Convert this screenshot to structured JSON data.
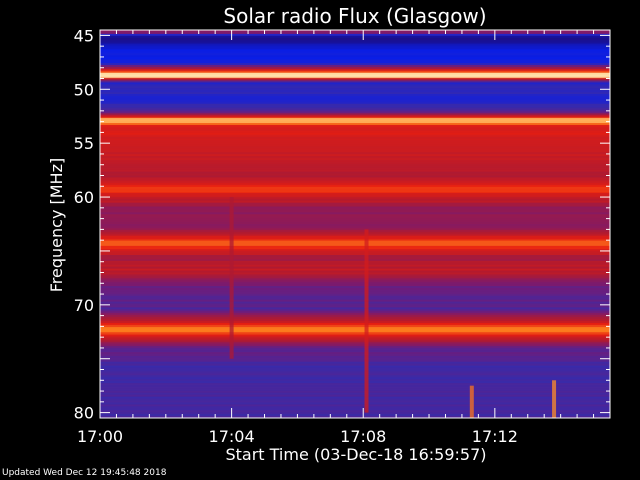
{
  "footer": {
    "updated": "Updated Wed Dec 12 19:45:48 2018"
  },
  "chart_data": {
    "type": "heatmap",
    "title": "Solar radio Flux (Glasgow)",
    "xlabel": "Start Time (03-Dec-18 16:59:57)",
    "ylabel": "Frequency [MHz]",
    "x_ticks": [
      "17:00",
      "17:04",
      "17:08",
      "17:12"
    ],
    "x_tick_minutes": [
      0,
      4,
      8,
      12
    ],
    "x_range_minutes": [
      0,
      15.5
    ],
    "y_ticks": [
      45,
      50,
      55,
      60,
      70,
      80
    ],
    "y_range": [
      44.5,
      80.5
    ],
    "colormap": [
      "#05051e",
      "#1a0f8c",
      "#0a1ee6",
      "#3a2aa8",
      "#7a1a70",
      "#b01a30",
      "#e81e10",
      "#ff8a20",
      "#fff4c8"
    ],
    "bands": [
      {
        "freq": 44.7,
        "level": 0.55
      },
      {
        "freq": 45.2,
        "level": 0.1
      },
      {
        "freq": 46.5,
        "level": 0.25
      },
      {
        "freq": 47.5,
        "level": 0.26
      },
      {
        "freq": 48.7,
        "level": 0.98
      },
      {
        "freq": 49.4,
        "level": 0.3
      },
      {
        "freq": 50.0,
        "level": 0.35
      },
      {
        "freq": 51.0,
        "level": 0.3
      },
      {
        "freq": 52.0,
        "level": 0.4
      },
      {
        "freq": 52.9,
        "level": 0.92
      },
      {
        "freq": 53.5,
        "level": 0.72
      },
      {
        "freq": 55.0,
        "level": 0.7
      },
      {
        "freq": 56.5,
        "level": 0.66
      },
      {
        "freq": 58.0,
        "level": 0.62
      },
      {
        "freq": 59.3,
        "level": 0.78
      },
      {
        "freq": 61.0,
        "level": 0.56
      },
      {
        "freq": 62.6,
        "level": 0.52
      },
      {
        "freq": 64.3,
        "level": 0.82
      },
      {
        "freq": 65.6,
        "level": 0.6
      },
      {
        "freq": 66.8,
        "level": 0.66
      },
      {
        "freq": 68.5,
        "level": 0.46
      },
      {
        "freq": 70.5,
        "level": 0.42
      },
      {
        "freq": 72.3,
        "level": 0.86
      },
      {
        "freq": 74.0,
        "level": 0.45
      },
      {
        "freq": 76.0,
        "level": 0.38
      },
      {
        "freq": 78.0,
        "level": 0.4
      },
      {
        "freq": 80.5,
        "level": 0.4
      }
    ],
    "bursts": [
      {
        "t": 4.0,
        "f1": 60.0,
        "f2": 75.0,
        "level": 0.62
      },
      {
        "t": 8.1,
        "f1": 63.0,
        "f2": 80.0,
        "level": 0.7
      },
      {
        "t": 13.8,
        "f1": 77.0,
        "f2": 80.5,
        "level": 0.88
      },
      {
        "t": 11.3,
        "f1": 77.5,
        "f2": 80.5,
        "level": 0.85
      }
    ]
  }
}
